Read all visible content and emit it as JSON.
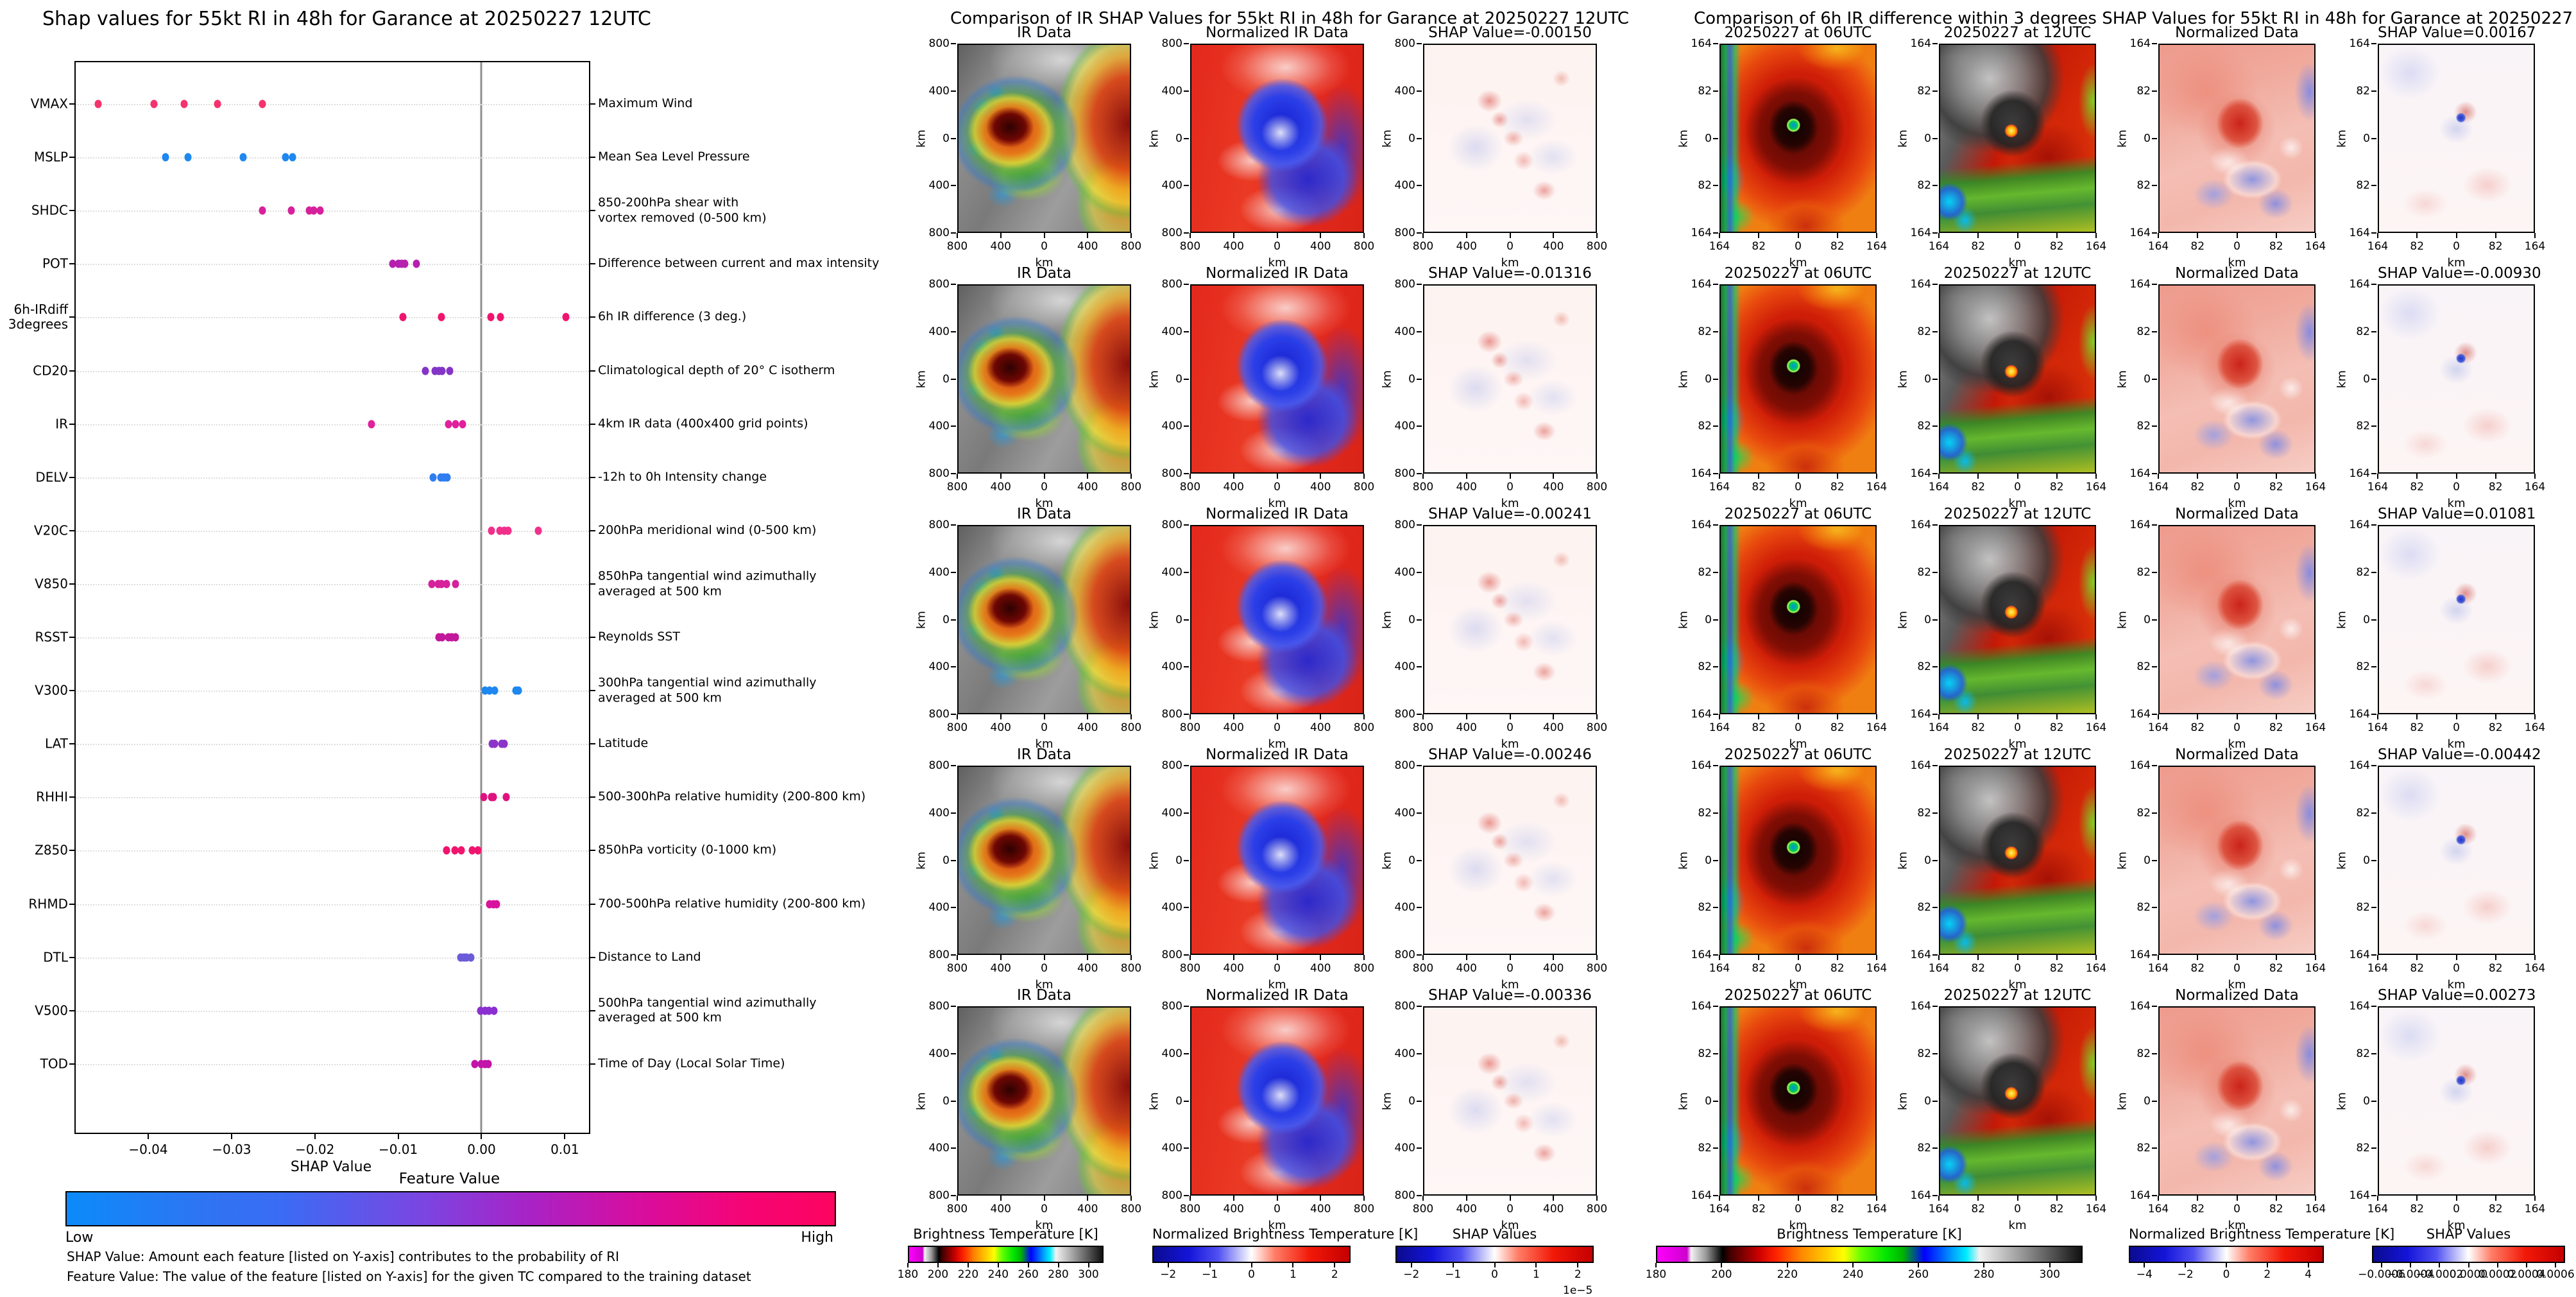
{
  "left_panel": {
    "title": "Shap values for 55kt RI in 48h for Garance at 20250227 12UTC",
    "xlabel": "SHAP Value",
    "x_ticks": [
      -0.04,
      -0.03,
      -0.02,
      -0.01,
      0.0,
      0.01
    ],
    "x_tick_labels": [
      "−0.04",
      "−0.03",
      "−0.02",
      "−0.01",
      "0.00",
      "0.01"
    ],
    "colorbar": {
      "title": "Feature Value",
      "low_label": "Low",
      "high_label": "High",
      "low_color": "#0b8bfa",
      "high_color": "#fb0560"
    },
    "footnote_shap": "SHAP Value: Amount each feature [listed on Y-axis] contributes to the probability of RI",
    "footnote_feature": "Feature Value: The value of the feature [listed on Y-axis] for the given TC compared to the training dataset"
  },
  "chart_data": {
    "type": "scatter",
    "title": "Shap values for 55kt RI in 48h for Garance at 20250227 12UTC",
    "xlabel": "SHAP Value",
    "xlim": [
      -0.0487,
      0.0129
    ],
    "grid": "horizontal-dotted",
    "zero_line": 0.0,
    "features": [
      {
        "code": "VMAX",
        "description": "Maximum Wind",
        "color": "#f5326e",
        "values": [
          -0.046,
          -0.0393,
          -0.0357,
          -0.0317,
          -0.0263
        ]
      },
      {
        "code": "MSLP",
        "description": "Mean Sea Level Pressure",
        "color": "#1e88f0",
        "values": [
          -0.0379,
          -0.0352,
          -0.0286,
          -0.0235,
          -0.0227
        ]
      },
      {
        "code": "SHDC",
        "description": "850-200hPa shear with\nvortex removed (0-500 km)",
        "color": "#d6219c",
        "values": [
          -0.0263,
          -0.0228,
          -0.0207,
          -0.0201,
          -0.0194
        ]
      },
      {
        "code": "POT",
        "description": "Difference between current and max intensity",
        "color": "#b521ae",
        "values": [
          -0.0107,
          -0.01,
          -0.0096,
          -0.0092,
          -0.0078
        ]
      },
      {
        "code": "6h-IRdiff\n3degrees",
        "description": "6h IR difference (3 deg.)",
        "color": "#f0146e",
        "values": [
          -0.0094,
          -0.0048,
          0.0011,
          0.0023,
          0.0101
        ]
      },
      {
        "code": "CD20",
        "description": "Climatological depth of 20° C isotherm",
        "color": "#8435c8",
        "values": [
          -0.0067,
          -0.0056,
          -0.0051,
          -0.0047,
          -0.0038
        ]
      },
      {
        "code": "IR",
        "description": "4km IR data (400x400 grid points)",
        "color": "#e0219c",
        "values": [
          -0.0132,
          -0.004,
          -0.0031,
          -0.0023
        ]
      },
      {
        "code": "DELV",
        "description": "-12h to 0h Intensity change",
        "color": "#2f7df0",
        "values": [
          -0.0058,
          -0.0049,
          -0.0045,
          -0.0041
        ]
      },
      {
        "code": "V20C",
        "description": "200hPa meridional wind (0-500 km)",
        "color": "#f0308a",
        "values": [
          0.0012,
          0.0022,
          0.0027,
          0.0032,
          0.0068
        ]
      },
      {
        "code": "V850",
        "description": "850hPa tangential wind azimuthally\naveraged at 500 km",
        "color": "#d6219c",
        "values": [
          -0.006,
          -0.0052,
          -0.0048,
          -0.0042,
          -0.0031
        ]
      },
      {
        "code": "RSST",
        "description": "Reynolds SST",
        "color": "#c2189c",
        "values": [
          -0.0051,
          -0.0047,
          -0.004,
          -0.0036,
          -0.0031
        ]
      },
      {
        "code": "V300",
        "description": "300hPa tangential wind azimuthally\naveraged at 500 km",
        "color": "#1e88f0",
        "values": [
          0.0004,
          0.001,
          0.0016,
          0.0041,
          0.0044
        ]
      },
      {
        "code": "LAT",
        "description": "Latitude",
        "color": "#8b35c8",
        "values": [
          0.0013,
          0.0016,
          0.0024,
          0.0027
        ]
      },
      {
        "code": "RHHI",
        "description": "500-300hPa relative humidity (200-800 km)",
        "color": "#e0127e",
        "values": [
          0.0003,
          0.0012,
          0.0014,
          0.003
        ]
      },
      {
        "code": "Z850",
        "description": "850hPa vorticity (0-1000 km)",
        "color": "#f0146e",
        "values": [
          -0.0042,
          -0.0032,
          -0.0024,
          -0.0011,
          -0.0004
        ]
      },
      {
        "code": "RHMD",
        "description": "700-500hPa relative humidity (200-800 km)",
        "color": "#d8149c",
        "values": [
          0.001,
          0.0014,
          0.0018
        ]
      },
      {
        "code": "DTL",
        "description": "Distance to Land",
        "color": "#6a5cd8",
        "values": [
          -0.0025,
          -0.0021,
          -0.0018,
          -0.0013
        ]
      },
      {
        "code": "V500",
        "description": "500hPa tangential wind azimuthally\naveraged at 500 km",
        "color": "#8a30d0",
        "values": [
          -0.0001,
          0.0004,
          0.0009,
          0.0015
        ]
      },
      {
        "code": "TOD",
        "description": "Time of Day (Local Solar Time)",
        "color": "#c214a8",
        "values": [
          -0.0008,
          0.0,
          0.0004,
          0.0008
        ]
      }
    ]
  },
  "middle_panel": {
    "title": "Comparison of IR SHAP Values for 55kt RI in 48h for Garance at 20250227 12UTC",
    "columns": [
      "IR Data",
      "Normalized IR Data"
    ],
    "row_shap_titles": [
      "SHAP Value=-0.00150",
      "SHAP Value=-0.01316",
      "SHAP Value=-0.00241",
      "SHAP Value=-0.00246",
      "SHAP Value=-0.00336"
    ],
    "axis": {
      "x_ticks": [
        "800",
        "400",
        "0",
        "400",
        "800"
      ],
      "y_ticks": [
        "800",
        "400",
        "0",
        "400",
        "800"
      ],
      "unit": "km"
    },
    "colorbars": [
      {
        "title": "Brightness Temperature [K]",
        "ticks": [
          "180",
          "200",
          "220",
          "240",
          "260",
          "280",
          "300"
        ],
        "style": "bt"
      },
      {
        "title": "Normalized Brightness Temperature [K]",
        "ticks": [
          "−2",
          "−1",
          "0",
          "1",
          "2"
        ],
        "style": "seismic"
      },
      {
        "title": "SHAP Values",
        "ticks": [
          "−2",
          "−1",
          "0",
          "1",
          "2"
        ],
        "style": "seismic",
        "multiplier": "1e−5"
      }
    ]
  },
  "right_panel": {
    "title": "Comparison of 6h IR difference within 3 degrees SHAP Values for 55kt RI in 48h for Garance at 20250227 12UTC",
    "columns": [
      "20250227 at 06UTC",
      "20250227 at 12UTC",
      "Normalized Data"
    ],
    "row_shap_titles": [
      "SHAP Value=0.00167",
      "SHAP Value=-0.00930",
      "SHAP Value=0.01081",
      "SHAP Value=-0.00442",
      "SHAP Value=0.00273"
    ],
    "axis": {
      "x_ticks": [
        "164",
        "82",
        "0",
        "82",
        "164"
      ],
      "y_ticks": [
        "164",
        "82",
        "0",
        "82",
        "164"
      ],
      "unit": "km"
    },
    "colorbars": [
      {
        "title": "Brightness Temperature [K]",
        "ticks": [
          "180",
          "200",
          "220",
          "240",
          "260",
          "280",
          "300"
        ],
        "style": "bt"
      },
      {
        "title": "Normalized Brightness Temperature [K]",
        "ticks": [
          "−4",
          "−2",
          "0",
          "2",
          "4"
        ],
        "style": "seismic"
      },
      {
        "title": "SHAP Values",
        "ticks": [
          "−0.0006",
          "−0.0004",
          "−0.0002",
          "0.0000",
          "0.0002",
          "0.0004",
          "0.0006"
        ],
        "style": "seismic"
      }
    ]
  }
}
